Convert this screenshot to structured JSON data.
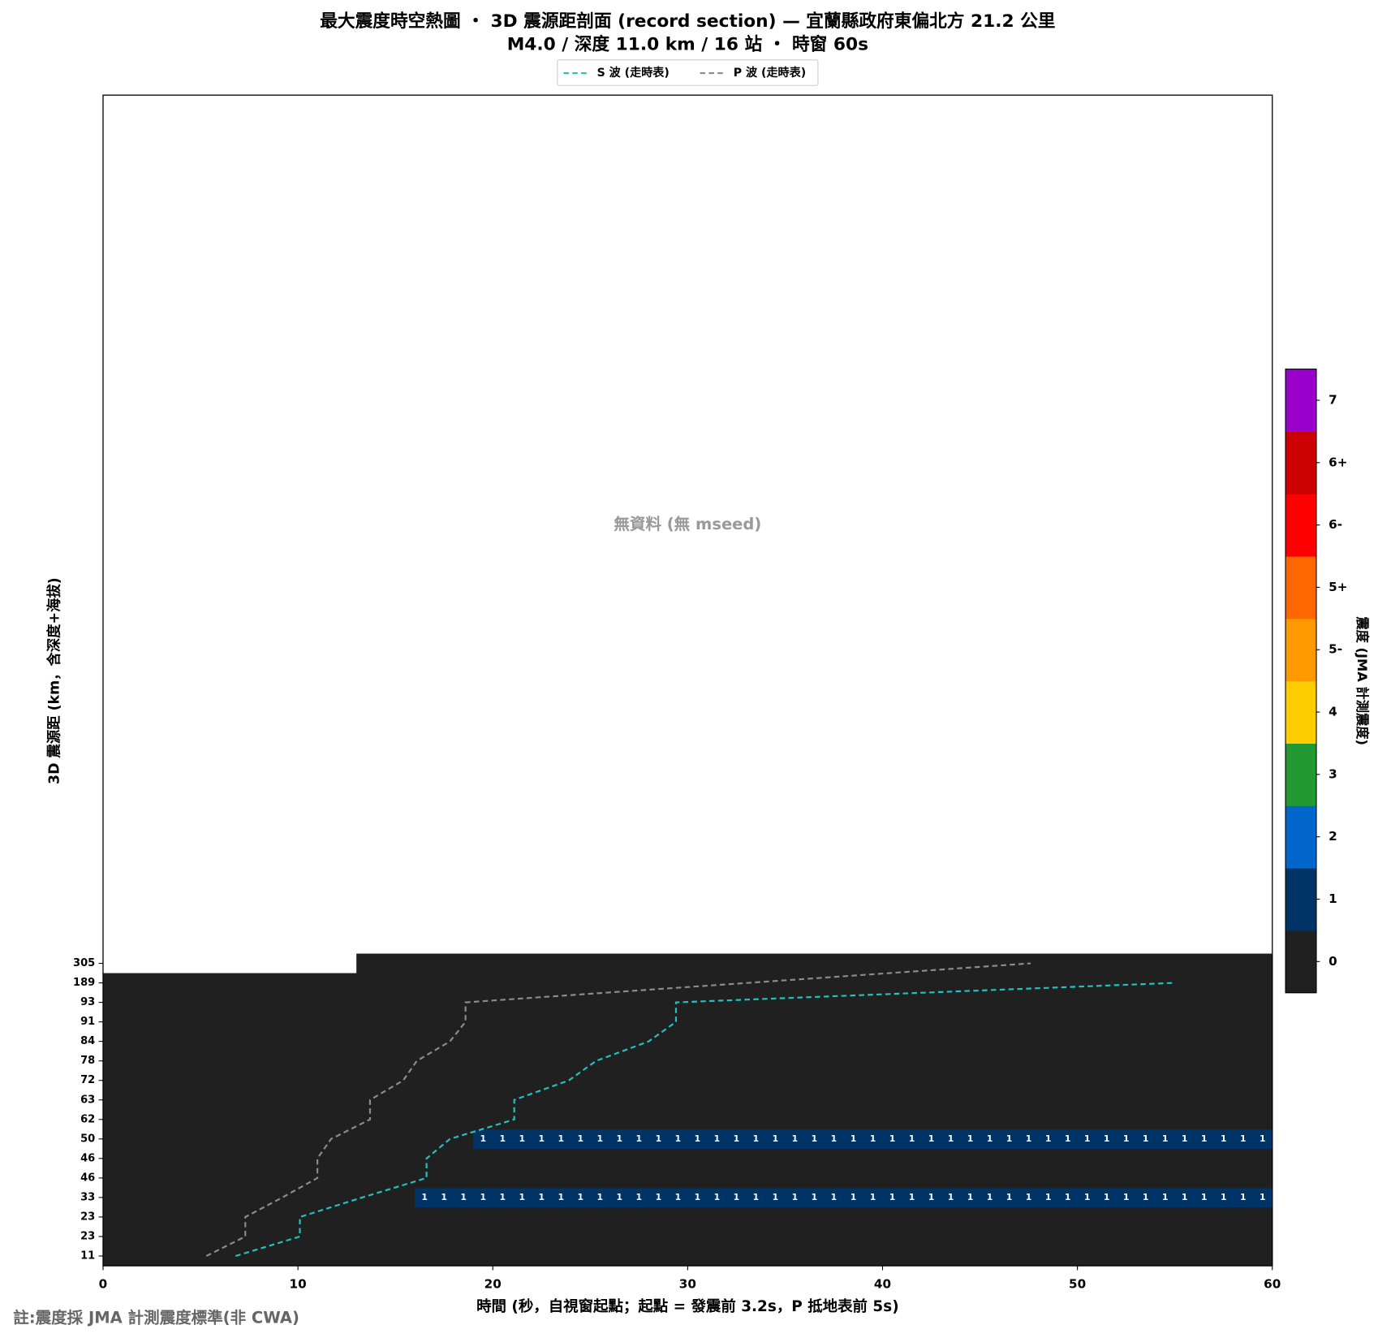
{
  "chart_data": {
    "type": "heatmap",
    "title": "最大震度時空熱圖 ・ 3D 震源距剖面 (record section) — 宜蘭縣政府東偏北方  21.2  公里",
    "subtitle": "M4.0 / 深度 11.0 km / 16 站 ・ 時窗 60s",
    "x_label": "時間 (秒，自視窗起點；起點 = 發震前 3.2s，P 抵地表前 5s)",
    "y_label": "3D 震源距 (km，含深度+海拔)",
    "annotation": "無資料 (無 mseed)",
    "footnote": "註:震度採 JMA 計測震度標準(非 CWA)",
    "xlim": [
      0,
      60
    ],
    "xticks": [
      0,
      10,
      20,
      30,
      40,
      50,
      60
    ],
    "ylim": [
      -0.5,
      59.5
    ],
    "y_categories": [
      "11",
      "23",
      "23",
      "33",
      "46",
      "46",
      "50",
      "62",
      "63",
      "72",
      "78",
      "84",
      "91",
      "93",
      "189",
      "305"
    ],
    "z": [
      [
        0,
        0,
        0,
        0,
        0,
        0,
        0,
        0,
        0,
        0,
        0,
        0,
        0,
        0,
        0,
        0,
        0,
        0,
        0,
        0,
        0,
        0,
        0,
        0,
        0,
        0,
        0,
        0,
        0,
        0,
        0,
        0,
        0,
        0,
        0,
        0,
        0,
        0,
        0,
        0,
        0,
        0,
        0,
        0,
        0,
        0,
        0,
        0,
        0,
        0,
        0,
        0,
        0,
        0,
        0,
        0,
        0,
        0,
        0,
        0
      ],
      [
        0,
        0,
        0,
        0,
        0,
        0,
        0,
        0,
        0,
        0,
        0,
        0,
        0,
        0,
        0,
        0,
        0,
        0,
        0,
        0,
        0,
        0,
        0,
        0,
        0,
        0,
        0,
        0,
        0,
        0,
        0,
        0,
        0,
        0,
        0,
        0,
        0,
        0,
        0,
        0,
        0,
        0,
        0,
        0,
        0,
        0,
        0,
        0,
        0,
        0,
        0,
        0,
        0,
        0,
        0,
        0,
        0,
        0,
        0,
        0
      ],
      [
        0,
        0,
        0,
        0,
        0,
        0,
        0,
        0,
        0,
        0,
        0,
        0,
        0,
        0,
        0,
        0,
        0,
        0,
        0,
        0,
        0,
        0,
        0,
        0,
        0,
        0,
        0,
        0,
        0,
        0,
        0,
        0,
        0,
        0,
        0,
        0,
        0,
        0,
        0,
        0,
        0,
        0,
        0,
        0,
        0,
        0,
        0,
        0,
        0,
        0,
        0,
        0,
        0,
        0,
        0,
        0,
        0,
        0,
        0,
        0
      ],
      [
        0,
        0,
        0,
        0,
        0,
        0,
        0,
        0,
        0,
        0,
        0,
        0,
        0,
        0,
        0,
        0,
        1,
        1,
        1,
        1,
        1,
        1,
        1,
        1,
        1,
        1,
        1,
        1,
        1,
        1,
        1,
        1,
        1,
        1,
        1,
        1,
        1,
        1,
        1,
        1,
        1,
        1,
        1,
        1,
        1,
        1,
        1,
        1,
        1,
        1,
        1,
        1,
        1,
        1,
        1,
        1,
        1,
        1,
        1,
        1
      ],
      [
        0,
        0,
        0,
        0,
        0,
        0,
        0,
        0,
        0,
        0,
        0,
        0,
        0,
        0,
        0,
        0,
        0,
        0,
        0,
        0,
        0,
        0,
        0,
        0,
        0,
        0,
        0,
        0,
        0,
        0,
        0,
        0,
        0,
        0,
        0,
        0,
        0,
        0,
        0,
        0,
        0,
        0,
        0,
        0,
        0,
        0,
        0,
        0,
        0,
        0,
        0,
        0,
        0,
        0,
        0,
        0,
        0,
        0,
        0,
        0
      ],
      [
        0,
        0,
        0,
        0,
        0,
        0,
        0,
        0,
        0,
        0,
        0,
        0,
        0,
        0,
        0,
        0,
        0,
        0,
        0,
        0,
        0,
        0,
        0,
        0,
        0,
        0,
        0,
        0,
        0,
        0,
        0,
        0,
        0,
        0,
        0,
        0,
        0,
        0,
        0,
        0,
        0,
        0,
        0,
        0,
        0,
        0,
        0,
        0,
        0,
        0,
        0,
        0,
        0,
        0,
        0,
        0,
        0,
        0,
        0,
        0
      ],
      [
        0,
        0,
        0,
        0,
        0,
        0,
        0,
        0,
        0,
        0,
        0,
        0,
        0,
        0,
        0,
        0,
        0,
        0,
        0,
        1,
        1,
        1,
        1,
        1,
        1,
        1,
        1,
        1,
        1,
        1,
        1,
        1,
        1,
        1,
        1,
        1,
        1,
        1,
        1,
        1,
        1,
        1,
        1,
        1,
        1,
        1,
        1,
        1,
        1,
        1,
        1,
        1,
        1,
        1,
        1,
        1,
        1,
        1,
        1,
        1
      ],
      [
        0,
        0,
        0,
        0,
        0,
        0,
        0,
        0,
        0,
        0,
        0,
        0,
        0,
        0,
        0,
        0,
        0,
        0,
        0,
        0,
        0,
        0,
        0,
        0,
        0,
        0,
        0,
        0,
        0,
        0,
        0,
        0,
        0,
        0,
        0,
        0,
        0,
        0,
        0,
        0,
        0,
        0,
        0,
        0,
        0,
        0,
        0,
        0,
        0,
        0,
        0,
        0,
        0,
        0,
        0,
        0,
        0,
        0,
        0,
        0
      ],
      [
        0,
        0,
        0,
        0,
        0,
        0,
        0,
        0,
        0,
        0,
        0,
        0,
        0,
        0,
        0,
        0,
        0,
        0,
        0,
        0,
        0,
        0,
        0,
        0,
        0,
        0,
        0,
        0,
        0,
        0,
        0,
        0,
        0,
        0,
        0,
        0,
        0,
        0,
        0,
        0,
        0,
        0,
        0,
        0,
        0,
        0,
        0,
        0,
        0,
        0,
        0,
        0,
        0,
        0,
        0,
        0,
        0,
        0,
        0,
        0
      ],
      [
        0,
        0,
        0,
        0,
        0,
        0,
        0,
        0,
        0,
        0,
        0,
        0,
        0,
        0,
        0,
        0,
        0,
        0,
        0,
        0,
        0,
        0,
        0,
        0,
        0,
        0,
        0,
        0,
        0,
        0,
        0,
        0,
        0,
        0,
        0,
        0,
        0,
        0,
        0,
        0,
        0,
        0,
        0,
        0,
        0,
        0,
        0,
        0,
        0,
        0,
        0,
        0,
        0,
        0,
        0,
        0,
        0,
        0,
        0,
        0
      ],
      [
        0,
        0,
        0,
        0,
        0,
        0,
        0,
        0,
        0,
        0,
        0,
        0,
        0,
        0,
        0,
        0,
        0,
        0,
        0,
        0,
        0,
        0,
        0,
        0,
        0,
        0,
        0,
        0,
        0,
        0,
        0,
        0,
        0,
        0,
        0,
        0,
        0,
        0,
        0,
        0,
        0,
        0,
        0,
        0,
        0,
        0,
        0,
        0,
        0,
        0,
        0,
        0,
        0,
        0,
        0,
        0,
        0,
        0,
        0,
        0
      ],
      [
        0,
        0,
        0,
        0,
        0,
        0,
        0,
        0,
        0,
        0,
        0,
        0,
        0,
        0,
        0,
        0,
        0,
        0,
        0,
        0,
        0,
        0,
        0,
        0,
        0,
        0,
        0,
        0,
        0,
        0,
        0,
        0,
        0,
        0,
        0,
        0,
        0,
        0,
        0,
        0,
        0,
        0,
        0,
        0,
        0,
        0,
        0,
        0,
        0,
        0,
        0,
        0,
        0,
        0,
        0,
        0,
        0,
        0,
        0,
        0
      ],
      [
        0,
        0,
        0,
        0,
        0,
        0,
        0,
        0,
        0,
        0,
        0,
        0,
        0,
        0,
        0,
        0,
        0,
        0,
        0,
        0,
        0,
        0,
        0,
        0,
        0,
        0,
        0,
        0,
        0,
        0,
        0,
        0,
        0,
        0,
        0,
        0,
        0,
        0,
        0,
        0,
        0,
        0,
        0,
        0,
        0,
        0,
        0,
        0,
        0,
        0,
        0,
        0,
        0,
        0,
        0,
        0,
        0,
        0,
        0,
        0
      ],
      [
        0,
        0,
        0,
        0,
        0,
        0,
        0,
        0,
        0,
        0,
        0,
        0,
        0,
        0,
        0,
        0,
        0,
        0,
        0,
        0,
        0,
        0,
        0,
        0,
        0,
        0,
        0,
        0,
        0,
        0,
        0,
        0,
        0,
        0,
        0,
        0,
        0,
        0,
        0,
        0,
        0,
        0,
        0,
        0,
        0,
        0,
        0,
        0,
        0,
        0,
        0,
        0,
        0,
        0,
        0,
        0,
        0,
        0,
        0,
        0
      ],
      [
        0,
        0,
        0,
        0,
        0,
        0,
        0,
        0,
        0,
        0,
        0,
        0,
        0,
        0,
        0,
        0,
        0,
        0,
        0,
        0,
        0,
        0,
        0,
        0,
        0,
        0,
        0,
        0,
        0,
        0,
        0,
        0,
        0,
        0,
        0,
        0,
        0,
        0,
        0,
        0,
        0,
        0,
        0,
        0,
        0,
        0,
        0,
        0,
        0,
        0,
        0,
        0,
        0,
        0,
        0,
        0,
        0,
        0,
        0,
        0
      ],
      [
        null,
        null,
        null,
        null,
        null,
        null,
        null,
        null,
        null,
        null,
        null,
        null,
        null,
        0,
        0,
        0,
        0,
        0,
        0,
        0,
        0,
        0,
        0,
        0,
        0,
        0,
        0,
        0,
        0,
        0,
        0,
        0,
        0,
        0,
        0,
        0,
        0,
        0,
        0,
        0,
        0,
        0,
        0,
        0,
        0,
        0,
        0,
        0,
        0,
        0,
        0,
        0,
        0,
        0,
        0,
        0,
        0,
        0,
        0,
        0
      ]
    ],
    "series": [
      {
        "name": "S 波 (走時表)",
        "color": "#22c2c2",
        "values": [
          6.8,
          10.1,
          10.1,
          13.3,
          16.6,
          16.6,
          17.8,
          21.1,
          21.1,
          23.9,
          25.3,
          28.0,
          29.4,
          29.4,
          55.0,
          null
        ]
      },
      {
        "name": "P 波 (走時表)",
        "color": "#8c8c8c",
        "values": [
          5.3,
          7.3,
          7.3,
          9.2,
          11.0,
          11.0,
          11.7,
          13.7,
          13.7,
          15.4,
          16.1,
          17.8,
          18.6,
          18.6,
          33.1,
          47.6
        ]
      }
    ],
    "colorbar": {
      "label": "震度 (JMA 計測震度)",
      "ticks": [
        "0",
        "1",
        "2",
        "3",
        "4",
        "5-",
        "5+",
        "6-",
        "6+",
        "7"
      ],
      "colors": [
        "#202020",
        "#003366",
        "#0066cc",
        "#229933",
        "#ffcc00",
        "#ff9900",
        "#ff6600",
        "#ff0000",
        "#cc0000",
        "#9900cc"
      ]
    }
  }
}
